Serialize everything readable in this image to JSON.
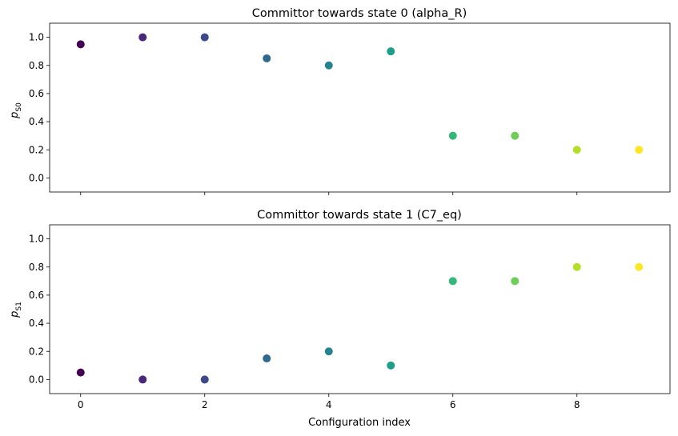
{
  "chart_data": [
    {
      "type": "scatter",
      "title": "Committor towards state 0 (alpha_R)",
      "ylabel_base": "p",
      "ylabel_sub": "S0",
      "xlabel": "",
      "x": [
        0,
        1,
        2,
        3,
        4,
        5,
        6,
        7,
        8,
        9
      ],
      "y": [
        0.95,
        1.0,
        1.0,
        0.85,
        0.8,
        0.9,
        0.3,
        0.3,
        0.2,
        0.2
      ],
      "xlim": [
        -0.5,
        9.5
      ],
      "ylim": [
        -0.1,
        1.1
      ],
      "xticks": [
        "0",
        "2",
        "4",
        "6",
        "8"
      ],
      "xtick_values": [
        0,
        2,
        4,
        6,
        8
      ],
      "show_xtick_labels": false,
      "yticks": [
        "0.0",
        "0.2",
        "0.4",
        "0.6",
        "0.8",
        "1.0"
      ],
      "ytick_values": [
        0.0,
        0.2,
        0.4,
        0.6,
        0.8,
        1.0
      ],
      "grid": false,
      "colormap": "viridis"
    },
    {
      "type": "scatter",
      "title": "Committor towards state 1 (C7_eq)",
      "ylabel_base": "p",
      "ylabel_sub": "S1",
      "xlabel": "Configuration index",
      "x": [
        0,
        1,
        2,
        3,
        4,
        5,
        6,
        7,
        8,
        9
      ],
      "y": [
        0.05,
        0.0,
        0.0,
        0.15,
        0.2,
        0.1,
        0.7,
        0.7,
        0.8,
        0.8
      ],
      "xlim": [
        -0.5,
        9.5
      ],
      "ylim": [
        -0.1,
        1.1
      ],
      "xticks": [
        "0",
        "2",
        "4",
        "6",
        "8"
      ],
      "xtick_values": [
        0,
        2,
        4,
        6,
        8
      ],
      "show_xtick_labels": true,
      "yticks": [
        "0.0",
        "0.2",
        "0.4",
        "0.6",
        "0.8",
        "1.0"
      ],
      "ytick_values": [
        0.0,
        0.2,
        0.4,
        0.6,
        0.8,
        1.0
      ],
      "grid": false,
      "colormap": "viridis"
    }
  ],
  "point_colors": [
    "#440154",
    "#482878",
    "#3e4989",
    "#31688e",
    "#26828e",
    "#1f9e89",
    "#35b779",
    "#6ece58",
    "#b5de2b",
    "#fde725"
  ]
}
